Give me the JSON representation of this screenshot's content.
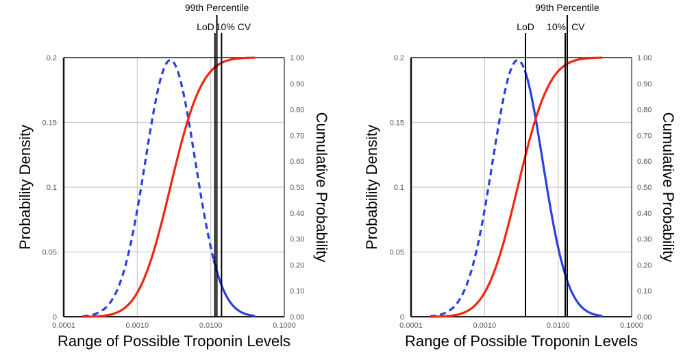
{
  "chart_data": [
    {
      "type": "line",
      "panel": "left",
      "title": "",
      "xlabel": "Range of Possible Troponin Levels",
      "ylabel": "Probability Density",
      "y2label": "Cumulative Probability",
      "xscale": "log",
      "xlim": [
        0.0001,
        0.1
      ],
      "ylim": [
        0,
        0.2
      ],
      "y2lim": [
        0,
        1.0
      ],
      "grid": true,
      "x_ticks": [
        "0.0001",
        "0.0010",
        "0.0100",
        "0.1000"
      ],
      "x_tick_values": [
        0.0001,
        0.001,
        0.01,
        0.1
      ],
      "y_ticks": [
        "0",
        "0.05",
        "0.1",
        "0.15",
        "0.2"
      ],
      "y_tick_values": [
        0,
        0.05,
        0.1,
        0.15,
        0.2
      ],
      "y2_ticks": [
        "0.00",
        "0.10",
        "0.20",
        "0.30",
        "0.40",
        "0.50",
        "0.60",
        "0.70",
        "0.80",
        "0.90",
        "1.00"
      ],
      "y2_tick_values": [
        0,
        0.1,
        0.2,
        0.3,
        0.4,
        0.5,
        0.6,
        0.7,
        0.8,
        0.9,
        1.0
      ],
      "series": [
        {
          "name": "Probability Density",
          "axis": "left",
          "color": "#2b3fdc",
          "style": "dashed-then-solid",
          "distribution": "lognormal",
          "log10_mean": -2.55,
          "log10_sd": 0.34,
          "peak": 0.198,
          "x_range": [
            0.00018,
            0.04
          ],
          "solid_from_x": 0.0114
        },
        {
          "name": "Cumulative Probability",
          "axis": "right",
          "color": "#f0250f",
          "style": "solid",
          "distribution": "lognormal_cdf",
          "log10_mean": -2.55,
          "log10_sd": 0.34,
          "x_range": [
            0.00018,
            0.04
          ]
        }
      ],
      "reference_lines": [
        {
          "label": "LoD",
          "x": 0.0114,
          "label_row": 2
        },
        {
          "label": "99th Percentile",
          "x": 0.0121,
          "label_row": 1
        },
        {
          "label": "10% CV",
          "x": 0.014,
          "label_row": 2
        }
      ]
    },
    {
      "type": "line",
      "panel": "right",
      "title": "",
      "xlabel": "Range of Possible Troponin Levels",
      "ylabel": "Probability Density",
      "y2label": "Cumulative Probability",
      "xscale": "log",
      "xlim": [
        0.0001,
        0.1
      ],
      "ylim": [
        0,
        0.2
      ],
      "y2lim": [
        0,
        1.0
      ],
      "grid": true,
      "x_ticks": [
        "0.0001",
        "0.0010",
        "0.0100",
        "0.1000"
      ],
      "x_tick_values": [
        0.0001,
        0.001,
        0.01,
        0.1
      ],
      "y_ticks": [
        "0",
        "0.05",
        "0.1",
        "0.15",
        "0.2"
      ],
      "y_tick_values": [
        0,
        0.05,
        0.1,
        0.15,
        0.2
      ],
      "y2_ticks": [
        "0.00",
        "0.10",
        "0.20",
        "0.30",
        "0.40",
        "0.50",
        "0.60",
        "0.70",
        "0.80",
        "0.90",
        "1.00"
      ],
      "y2_tick_values": [
        0,
        0.1,
        0.2,
        0.3,
        0.4,
        0.5,
        0.6,
        0.7,
        0.8,
        0.9,
        1.0
      ],
      "series": [
        {
          "name": "Probability Density",
          "axis": "left",
          "color": "#2b3fdc",
          "style": "dashed-then-solid",
          "distribution": "lognormal",
          "log10_mean": -2.55,
          "log10_sd": 0.34,
          "peak": 0.198,
          "x_range": [
            0.00018,
            0.04
          ],
          "solid_from_x": 0.0036
        },
        {
          "name": "Cumulative Probability",
          "axis": "right",
          "color": "#f0250f",
          "style": "solid",
          "distribution": "lognormal_cdf",
          "log10_mean": -2.55,
          "log10_sd": 0.34,
          "x_range": [
            0.00018,
            0.04
          ]
        }
      ],
      "reference_lines": [
        {
          "label": "LoD",
          "x": 0.0036,
          "label_row": 2
        },
        {
          "label": "10% CV",
          "x": 0.0125,
          "label_row": 2
        },
        {
          "label": "99th Percentile",
          "x": 0.0133,
          "label_row": 1
        }
      ]
    }
  ]
}
